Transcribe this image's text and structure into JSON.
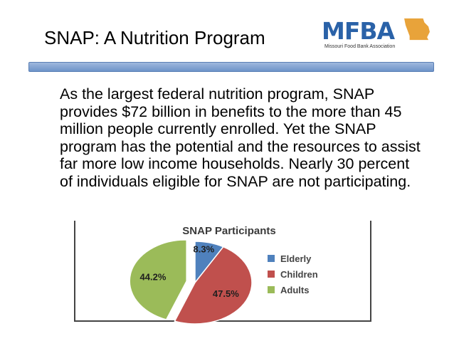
{
  "slide": {
    "title": "SNAP: A Nutrition Program",
    "body": "As the largest federal nutrition program, SNAP provides $72 billion in benefits to the more than 45 million people currently enrolled. Yet the SNAP program has the potential and the resources to assist far more low income households. Nearly 30 percent of individuals eligible for SNAP are not participating."
  },
  "logo": {
    "text": "MFBA",
    "subtext": "Missouri Food Bank Association",
    "color": "#2a62a8",
    "accent": "#e8a33a"
  },
  "chart_data": {
    "type": "pie",
    "title": "SNAP Participants",
    "slices": [
      {
        "label": "Elderly",
        "value": 8.3,
        "display": "8.3%",
        "color": "#4f81bd"
      },
      {
        "label": "Children",
        "value": 47.5,
        "display": "47.5%",
        "color": "#c0504d"
      },
      {
        "label": "Adults",
        "value": 44.2,
        "display": "44.2%",
        "color": "#9bbb59"
      }
    ],
    "legend": "right"
  }
}
